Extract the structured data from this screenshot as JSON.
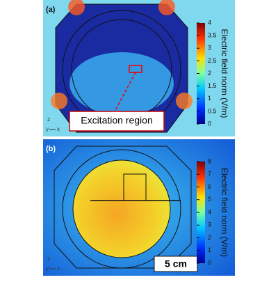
{
  "panels": [
    {
      "label": "(a)",
      "colorbar": {
        "title": "Electric field norm (V/m)",
        "ticks": [
          0,
          0.5,
          1,
          1.5,
          2,
          2.5,
          3,
          3.5,
          4
        ]
      },
      "annotation": "Excitation region",
      "axes": {
        "z": "z",
        "y": "y",
        "x": "x"
      }
    },
    {
      "label": "(b)",
      "colorbar": {
        "title": "Electric field norm (V/m)",
        "ticks": [
          0,
          1,
          2,
          3,
          4,
          5,
          6,
          7,
          8
        ]
      },
      "scale_bar": "5 cm",
      "axes": {
        "z": "z",
        "y": "y",
        "x": "x"
      }
    }
  ]
}
